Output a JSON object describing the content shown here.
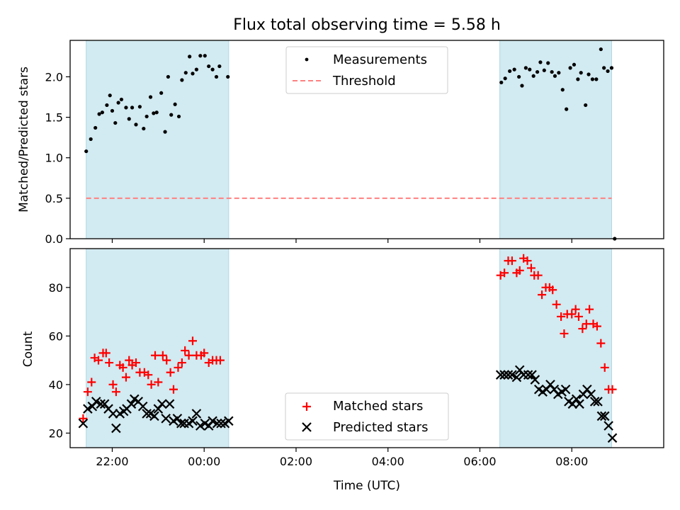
{
  "chart_data": [
    {
      "type": "scatter",
      "title": "Flux total observing time = 5.58 h",
      "xlabel": "",
      "ylabel": "Matched/Predicted stars",
      "x_unit": "time of day (UTC), night of 21:26 to 09:00",
      "xlim": [
        "21:05",
        "10:00"
      ],
      "ylim": [
        0,
        2.45
      ],
      "yticks": [
        "0.0",
        "0.5",
        "1.0",
        "1.5",
        "2.0"
      ],
      "x_tick_marks": [
        "22:00",
        "00:00",
        "02:00",
        "04:00",
        "06:00",
        "08:00"
      ],
      "shaded_intervals": [
        [
          "21:26",
          "00:32"
        ],
        [
          "06:26",
          "08:52"
        ]
      ],
      "shade_color": "#add8e6",
      "legend_position": "upper center",
      "series": [
        {
          "name": "Measurements",
          "marker": "dot",
          "color": "#000000",
          "points": [
            [
              "21:26",
              1.08
            ],
            [
              "21:32",
              1.23
            ],
            [
              "21:38",
              1.37
            ],
            [
              "21:43",
              1.54
            ],
            [
              "21:47",
              1.56
            ],
            [
              "21:53",
              1.65
            ],
            [
              "21:57",
              1.77
            ],
            [
              "22:00",
              1.58
            ],
            [
              "22:04",
              1.43
            ],
            [
              "22:08",
              1.68
            ],
            [
              "22:12",
              1.72
            ],
            [
              "22:18",
              1.62
            ],
            [
              "22:22",
              1.48
            ],
            [
              "22:26",
              1.62
            ],
            [
              "22:31",
              1.41
            ],
            [
              "22:36",
              1.63
            ],
            [
              "22:41",
              1.36
            ],
            [
              "22:45",
              1.51
            ],
            [
              "22:50",
              1.75
            ],
            [
              "22:54",
              1.55
            ],
            [
              "22:58",
              1.56
            ],
            [
              "23:04",
              1.8
            ],
            [
              "23:09",
              1.32
            ],
            [
              "23:13",
              2.0
            ],
            [
              "23:17",
              1.53
            ],
            [
              "23:22",
              1.66
            ],
            [
              "23:27",
              1.51
            ],
            [
              "23:31",
              1.96
            ],
            [
              "23:36",
              2.05
            ],
            [
              "23:41",
              2.25
            ],
            [
              "23:45",
              2.04
            ],
            [
              "23:50",
              2.09
            ],
            [
              "23:55",
              2.26
            ],
            [
              "00:01",
              2.26
            ],
            [
              "00:06",
              2.13
            ],
            [
              "00:11",
              2.09
            ],
            [
              "00:16",
              2.0
            ],
            [
              "00:20",
              2.13
            ],
            [
              "00:31",
              2.0
            ],
            [
              "06:28",
              1.93
            ],
            [
              "06:33",
              1.98
            ],
            [
              "06:39",
              2.07
            ],
            [
              "06:45",
              2.09
            ],
            [
              "06:51",
              2.0
            ],
            [
              "06:55",
              1.89
            ],
            [
              "07:00",
              2.11
            ],
            [
              "07:05",
              2.09
            ],
            [
              "07:10",
              2.01
            ],
            [
              "07:15",
              2.06
            ],
            [
              "07:19",
              2.18
            ],
            [
              "07:24",
              2.08
            ],
            [
              "07:29",
              2.17
            ],
            [
              "07:34",
              2.06
            ],
            [
              "07:38",
              2.01
            ],
            [
              "07:43",
              2.05
            ],
            [
              "07:48",
              1.84
            ],
            [
              "07:53",
              1.6
            ],
            [
              "07:58",
              2.11
            ],
            [
              "08:03",
              2.15
            ],
            [
              "08:08",
              1.97
            ],
            [
              "08:12",
              2.05
            ],
            [
              "08:18",
              1.65
            ],
            [
              "08:22",
              2.03
            ],
            [
              "08:27",
              1.97
            ],
            [
              "08:32",
              1.97
            ],
            [
              "08:38",
              2.34
            ],
            [
              "08:42",
              2.11
            ],
            [
              "08:47",
              2.07
            ],
            [
              "08:52",
              2.11
            ],
            [
              "08:56",
              0.0
            ]
          ]
        },
        {
          "name": "Threshold",
          "type": "line",
          "style": "dashed",
          "color": "#ff8080",
          "points": [
            [
              "21:26",
              0.5
            ],
            [
              "08:52",
              0.5
            ]
          ]
        }
      ]
    },
    {
      "type": "scatter",
      "title": "",
      "xlabel": "Time (UTC)",
      "ylabel": "Count",
      "xlim": [
        "21:05",
        "10:00"
      ],
      "ylim": [
        14,
        96
      ],
      "yticks": [
        "20",
        "40",
        "60",
        "80"
      ],
      "xticks": [
        "22:00",
        "00:00",
        "02:00",
        "04:00",
        "06:00",
        "08:00"
      ],
      "shaded_intervals": [
        [
          "21:26",
          "00:32"
        ],
        [
          "06:26",
          "08:52"
        ]
      ],
      "shade_color": "#add8e6",
      "legend_position": "lower center",
      "series": [
        {
          "name": "Matched stars",
          "marker": "plus",
          "color": "#ff0000",
          "points": [
            [
              "21:22",
              26
            ],
            [
              "21:28",
              37
            ],
            [
              "21:33",
              41
            ],
            [
              "21:37",
              51
            ],
            [
              "21:42",
              50
            ],
            [
              "21:48",
              53
            ],
            [
              "21:52",
              53
            ],
            [
              "21:56",
              49
            ],
            [
              "22:01",
              40
            ],
            [
              "22:05",
              37
            ],
            [
              "22:10",
              48
            ],
            [
              "22:14",
              47
            ],
            [
              "22:18",
              43
            ],
            [
              "22:22",
              50
            ],
            [
              "22:26",
              48
            ],
            [
              "22:31",
              49
            ],
            [
              "22:36",
              45
            ],
            [
              "22:42",
              45
            ],
            [
              "22:47",
              44
            ],
            [
              "22:51",
              40
            ],
            [
              "22:56",
              52
            ],
            [
              "23:00",
              41
            ],
            [
              "23:06",
              52
            ],
            [
              "23:11",
              50
            ],
            [
              "23:16",
              45
            ],
            [
              "23:20",
              38
            ],
            [
              "23:26",
              47
            ],
            [
              "23:31",
              49
            ],
            [
              "23:35",
              54
            ],
            [
              "23:40",
              52
            ],
            [
              "23:45",
              58
            ],
            [
              "23:50",
              52
            ],
            [
              "23:56",
              52
            ],
            [
              "00:00",
              53
            ],
            [
              "00:06",
              49
            ],
            [
              "00:11",
              50
            ],
            [
              "00:16",
              50
            ],
            [
              "00:21",
              50
            ],
            [
              "06:27",
              85
            ],
            [
              "06:32",
              86
            ],
            [
              "06:37",
              91
            ],
            [
              "06:42",
              91
            ],
            [
              "06:48",
              86
            ],
            [
              "06:52",
              87
            ],
            [
              "06:57",
              92
            ],
            [
              "07:02",
              91
            ],
            [
              "07:07",
              88
            ],
            [
              "07:11",
              85
            ],
            [
              "07:16",
              85
            ],
            [
              "07:21",
              77
            ],
            [
              "07:26",
              80
            ],
            [
              "07:31",
              80
            ],
            [
              "07:35",
              79
            ],
            [
              "07:40",
              73
            ],
            [
              "07:46",
              68
            ],
            [
              "07:50",
              61
            ],
            [
              "07:54",
              69
            ],
            [
              "08:00",
              69
            ],
            [
              "08:05",
              71
            ],
            [
              "08:09",
              68
            ],
            [
              "08:14",
              63
            ],
            [
              "08:19",
              65
            ],
            [
              "08:23",
              71
            ],
            [
              "08:28",
              65
            ],
            [
              "08:33",
              64
            ],
            [
              "08:38",
              57
            ],
            [
              "08:43",
              47
            ],
            [
              "08:48",
              38
            ],
            [
              "08:53",
              38
            ]
          ]
        },
        {
          "name": "Predicted stars",
          "marker": "x",
          "color": "#000000",
          "points": [
            [
              "21:22",
              24
            ],
            [
              "21:28",
              30
            ],
            [
              "21:34",
              31
            ],
            [
              "21:39",
              33
            ],
            [
              "21:45",
              32
            ],
            [
              "21:50",
              32
            ],
            [
              "21:55",
              30
            ],
            [
              "22:01",
              28
            ],
            [
              "22:05",
              22
            ],
            [
              "22:10",
              28
            ],
            [
              "22:15",
              29
            ],
            [
              "22:19",
              30
            ],
            [
              "22:25",
              32
            ],
            [
              "22:29",
              34
            ],
            [
              "22:34",
              33
            ],
            [
              "22:40",
              31
            ],
            [
              "22:45",
              28
            ],
            [
              "22:50",
              28
            ],
            [
              "22:55",
              27
            ],
            [
              "23:00",
              30
            ],
            [
              "23:05",
              32
            ],
            [
              "23:10",
              26
            ],
            [
              "23:15",
              32
            ],
            [
              "23:20",
              25
            ],
            [
              "23:25",
              26
            ],
            [
              "23:30",
              24
            ],
            [
              "23:34",
              24
            ],
            [
              "23:40",
              24
            ],
            [
              "23:45",
              25
            ],
            [
              "23:50",
              28
            ],
            [
              "23:55",
              23
            ],
            [
              "00:01",
              24
            ],
            [
              "00:06",
              23
            ],
            [
              "00:11",
              25
            ],
            [
              "00:17",
              24
            ],
            [
              "00:22",
              24
            ],
            [
              "00:27",
              24
            ],
            [
              "00:32",
              25
            ],
            [
              "06:27",
              44
            ],
            [
              "06:32",
              44
            ],
            [
              "06:37",
              44
            ],
            [
              "06:42",
              44
            ],
            [
              "06:48",
              43
            ],
            [
              "06:52",
              46
            ],
            [
              "06:57",
              44
            ],
            [
              "07:03",
              44
            ],
            [
              "07:08",
              44
            ],
            [
              "07:12",
              42
            ],
            [
              "07:17",
              38
            ],
            [
              "07:22",
              37
            ],
            [
              "07:27",
              38
            ],
            [
              "07:32",
              40
            ],
            [
              "07:37",
              38
            ],
            [
              "07:42",
              36
            ],
            [
              "07:47",
              37
            ],
            [
              "07:52",
              38
            ],
            [
              "07:56",
              33
            ],
            [
              "08:01",
              32
            ],
            [
              "08:06",
              34
            ],
            [
              "08:10",
              32
            ],
            [
              "08:15",
              36
            ],
            [
              "08:20",
              38
            ],
            [
              "08:25",
              36
            ],
            [
              "08:30",
              33
            ],
            [
              "08:34",
              33
            ],
            [
              "08:39",
              27
            ],
            [
              "08:43",
              27
            ],
            [
              "08:48",
              23
            ],
            [
              "08:53",
              18
            ]
          ]
        }
      ]
    }
  ]
}
